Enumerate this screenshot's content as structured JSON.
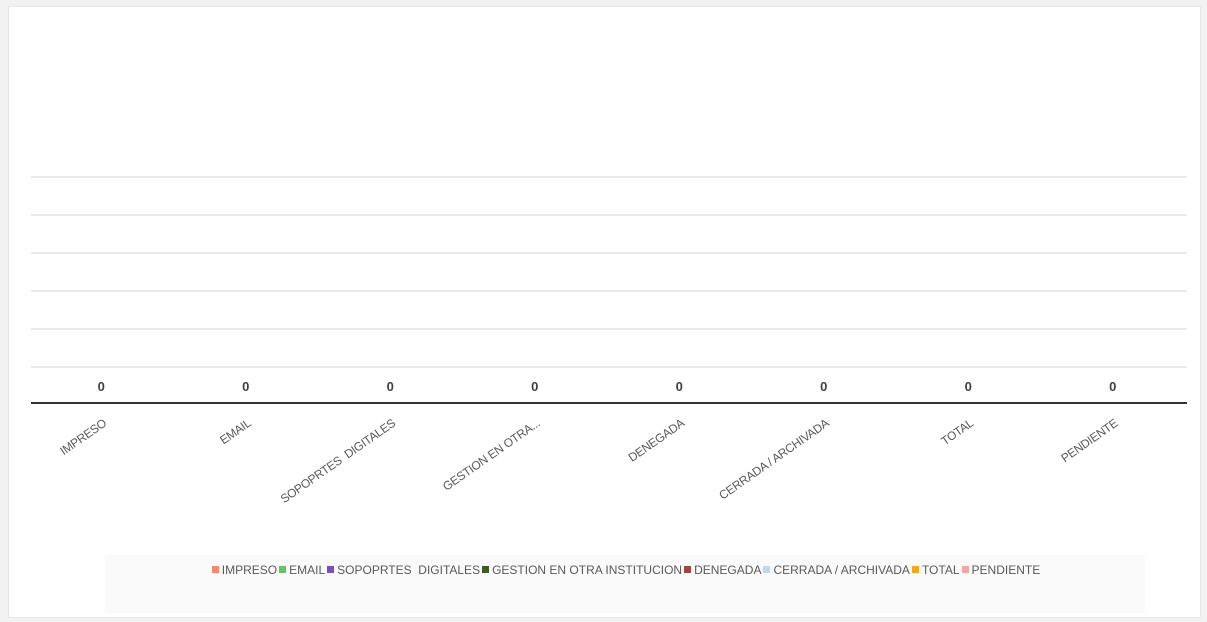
{
  "chart_data": {
    "type": "bar",
    "title": "",
    "xlabel": "",
    "ylabel": "",
    "categories": [
      "IMPRESO",
      "EMAIL",
      "SOPOPRTES  DIGITALES",
      "GESTION EN OTRA...",
      "DENEGADA",
      "CERRADA / ARCHIVADA",
      "TOTAL",
      "PENDIENTE"
    ],
    "values": [
      0,
      0,
      0,
      0,
      0,
      0,
      0,
      0
    ],
    "data_labels": [
      "0",
      "0",
      "0",
      "0",
      "0",
      "0",
      "0",
      "0"
    ],
    "grid": true,
    "legend": {
      "placement": "bottom",
      "entries": [
        {
          "label": "IMPRESO",
          "color": "#f4896b"
        },
        {
          "label": "EMAIL",
          "color": "#62c462"
        },
        {
          "label": "SOPOPRTES  DIGITALES",
          "color": "#7b4fb8"
        },
        {
          "label": "GESTION EN OTRA INSTITUCION",
          "color": "#3d5a2e"
        },
        {
          "label": "DENEGADA",
          "color": "#a0473b"
        },
        {
          "label": "CERRADA / ARCHIVADA",
          "color": "#bcd9f2"
        },
        {
          "label": "TOTAL",
          "color": "#f5a623"
        },
        {
          "label": "PENDIENTE",
          "color": "#f5a3a3"
        }
      ]
    }
  }
}
